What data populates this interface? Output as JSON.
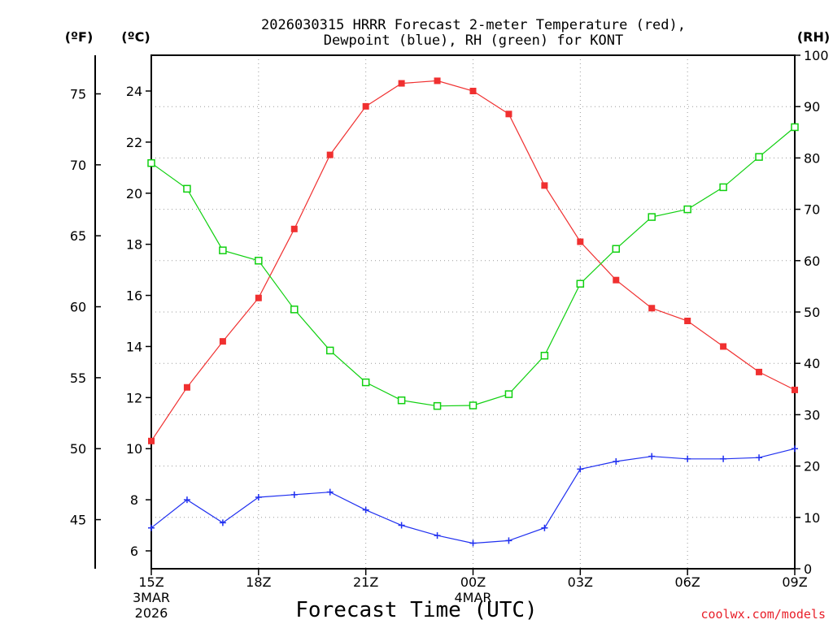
{
  "chart_data": {
    "type": "line",
    "title_line1": "2026030315 HRRR Forecast 2-meter Temperature (red),",
    "title_line2": "Dewpoint (blue), RH (green) for KONT",
    "xlabel": "Forecast Time (UTC)",
    "credit": "coolwx.com/models",
    "units": {
      "fahrenheit": "(ºF)",
      "celsius": "(ºC)",
      "rh": "(RH)"
    },
    "x_hours": [
      0,
      1,
      2,
      3,
      4,
      5,
      6,
      7,
      8,
      9,
      10,
      11,
      12,
      13,
      14,
      15,
      16,
      17,
      18
    ],
    "x_range": [
      0,
      18
    ],
    "x_ticks": [
      {
        "hour": 0,
        "label": "15Z",
        "sub1": "3MAR",
        "sub2": "2026"
      },
      {
        "hour": 3,
        "label": "18Z",
        "sub1": "",
        "sub2": ""
      },
      {
        "hour": 6,
        "label": "21Z",
        "sub1": "",
        "sub2": ""
      },
      {
        "hour": 9,
        "label": "00Z",
        "sub1": "4MAR",
        "sub2": ""
      },
      {
        "hour": 12,
        "label": "03Z",
        "sub1": "",
        "sub2": ""
      },
      {
        "hour": 15,
        "label": "06Z",
        "sub1": "",
        "sub2": ""
      },
      {
        "hour": 18,
        "label": "09Z",
        "sub1": "",
        "sub2": ""
      }
    ],
    "y_celsius_range": [
      5.3,
      25.4
    ],
    "y_celsius_ticks": [
      6,
      8,
      10,
      12,
      14,
      16,
      18,
      20,
      22,
      24
    ],
    "y_fahrenheit_ticks": [
      45,
      50,
      55,
      60,
      65,
      70,
      75
    ],
    "y_rh_range": [
      0,
      100
    ],
    "y_rh_ticks": [
      0,
      10,
      20,
      30,
      40,
      50,
      60,
      70,
      80,
      90,
      100
    ],
    "series": [
      {
        "name": "Temperature",
        "axis": "celsius",
        "color": "#f03030",
        "marker": "filled-square",
        "values": [
          10.3,
          12.4,
          14.2,
          15.9,
          18.6,
          21.5,
          23.4,
          24.3,
          24.4,
          24.0,
          23.1,
          20.3,
          18.1,
          16.6,
          15.5,
          15.0,
          14.0,
          13.0,
          12.3
        ]
      },
      {
        "name": "Dewpoint",
        "axis": "celsius",
        "color": "#2030f0",
        "marker": "plus",
        "values": [
          6.9,
          8.0,
          7.1,
          8.1,
          8.2,
          8.3,
          7.6,
          7.0,
          6.6,
          6.3,
          6.4,
          6.9,
          9.2,
          9.5,
          9.7,
          9.6,
          9.6,
          9.65,
          10.0
        ]
      },
      {
        "name": "RH",
        "axis": "rh",
        "color": "#10d010",
        "marker": "open-square",
        "values": [
          79,
          74,
          62,
          60,
          50.5,
          42.5,
          36.3,
          32.8,
          31.7,
          31.8,
          34,
          41.5,
          55.5,
          62.3,
          68.5,
          70,
          74.3,
          80.2,
          86
        ]
      }
    ]
  }
}
